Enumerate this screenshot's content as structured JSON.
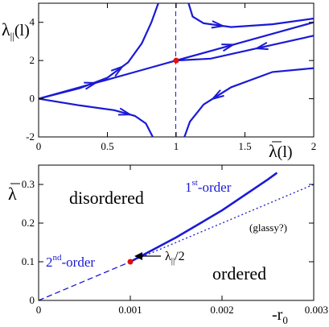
{
  "chart_data": [
    {
      "type": "line",
      "ylabel": "λ||(l)",
      "xlabel": "λ(l)",
      "xlim": [
        0,
        2
      ],
      "ylim": [
        -2,
        5
      ],
      "xticks": [
        "0",
        "0.5",
        "1",
        "1.5",
        "2"
      ],
      "yticks": [
        "-2",
        "0",
        "2",
        "4"
      ],
      "fixed_point": {
        "x": 1.0,
        "y": 2.0
      },
      "separatrix_x": 1.0,
      "flow_lines": [
        {
          "points": [
            [
              0.0,
              0.0
            ],
            [
              0.3,
              0.55
            ],
            [
              0.5,
              1.1
            ],
            [
              0.65,
              1.9
            ],
            [
              0.75,
              2.9
            ],
            [
              0.82,
              4.0
            ],
            [
              0.87,
              5.0
            ]
          ]
        },
        {
          "points": [
            [
              0.0,
              0.0
            ],
            [
              0.3,
              -0.35
            ],
            [
              0.55,
              -0.6
            ],
            [
              0.7,
              -0.9
            ],
            [
              0.78,
              -1.3
            ],
            [
              0.83,
              -2.0
            ]
          ]
        },
        {
          "points": [
            [
              0.0,
              0.0
            ],
            [
              0.25,
              0.5
            ],
            [
              0.5,
              1.0
            ],
            [
              0.75,
              1.5
            ],
            [
              1.0,
              2.0
            ]
          ]
        },
        {
          "points": [
            [
              1.0,
              2.0
            ],
            [
              1.25,
              2.5
            ],
            [
              1.5,
              3.0
            ],
            [
              1.75,
              3.5
            ],
            [
              2.0,
              4.0
            ]
          ]
        },
        {
          "points": [
            [
              1.09,
              5.0
            ],
            [
              1.12,
              4.3
            ],
            [
              1.2,
              3.95
            ],
            [
              1.4,
              3.75
            ],
            [
              1.7,
              3.9
            ],
            [
              2.0,
              4.2
            ]
          ]
        },
        {
          "points": [
            [
              2.0,
              3.3
            ],
            [
              1.75,
              2.9
            ],
            [
              1.5,
              2.5
            ],
            [
              1.25,
              2.1
            ],
            [
              1.0,
              2.0
            ]
          ]
        },
        {
          "points": [
            [
              2.0,
              1.6
            ],
            [
              1.7,
              1.4
            ],
            [
              1.4,
              0.6
            ],
            [
              1.2,
              -0.3
            ],
            [
              1.1,
              -1.2
            ],
            [
              1.06,
              -2.0
            ]
          ]
        }
      ]
    },
    {
      "type": "line",
      "ylabel": "λ",
      "xlabel": "-r0",
      "xlim": [
        0,
        0.003
      ],
      "ylim": [
        0,
        0.35
      ],
      "xticks": [
        "0",
        "0.001",
        "0.002",
        "0.003"
      ],
      "yticks": [
        "0",
        "0.1",
        "0.2",
        "0.3"
      ],
      "series": [
        {
          "style": "dashed",
          "x": [
            0,
            0.001
          ],
          "y": [
            0,
            0.1
          ]
        },
        {
          "style": "solid",
          "x": [
            0.001,
            0.0015,
            0.002,
            0.0025,
            0.0026
          ],
          "y": [
            0.1,
            0.163,
            0.233,
            0.313,
            0.33
          ]
        },
        {
          "style": "dotted",
          "x": [
            0.001,
            0.003
          ],
          "y": [
            0.1,
            0.3
          ]
        }
      ],
      "tricritical_point": {
        "x": 0.001,
        "y": 0.1
      }
    }
  ],
  "labels": {
    "top_ylabel_main": "λ",
    "top_ylabel_sub": "||",
    "top_ylabel_tail": "(l)",
    "top_xlabel_main": "λ",
    "top_xlabel_tail": "(l)",
    "bot_ylabel": "λ",
    "bot_xlabel_main": "-r",
    "bot_xlabel_sub": "0",
    "disordered": "disordered",
    "ordered": "ordered",
    "glassy": "(glassy?)",
    "first_num": "1",
    "first_sup": "st",
    "first_tail": "-order",
    "second_num": "2",
    "second_sup": "nd",
    "second_tail": "-order",
    "arrow_label_main": "λ",
    "arrow_label_sub": "||",
    "arrow_label_tail": "/2"
  },
  "colors": {
    "curve": "#1a1ad6",
    "point": "#e01010",
    "axis": "#000000"
  }
}
